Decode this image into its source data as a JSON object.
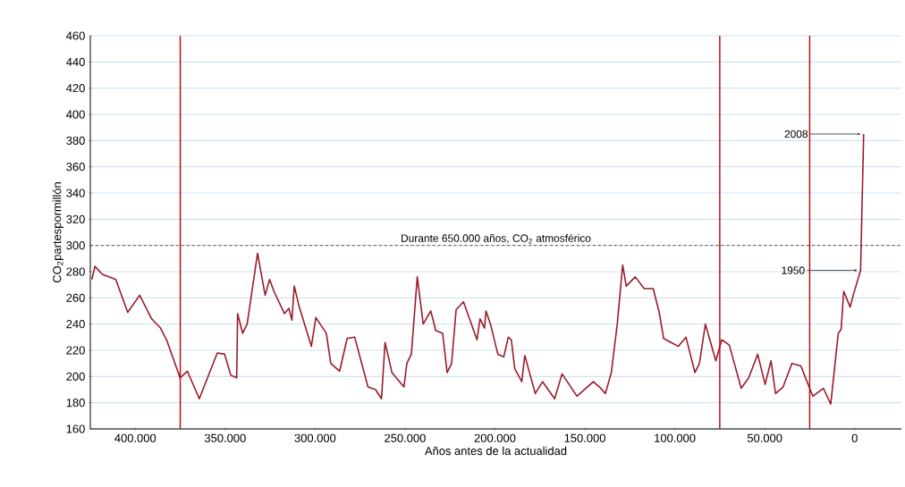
{
  "chart_data": {
    "type": "line",
    "xlabel": "Años antes de la actualidad",
    "ylabel": "CO$_{2}$partespormillón",
    "x": [
      424150,
      422440,
      418300,
      410850,
      404200,
      397550,
      390900,
      386000,
      382600,
      375100,
      371000,
      364400,
      354400,
      350300,
      346900,
      343600,
      343100,
      340300,
      337800,
      332000,
      327800,
      325300,
      322900,
      317100,
      314600,
      312900,
      311600,
      308800,
      302100,
      299600,
      293800,
      291300,
      286400,
      282200,
      278000,
      270600,
      266400,
      263100,
      261100,
      257300,
      250600,
      249000,
      246500,
      243200,
      239900,
      235700,
      232900,
      229100,
      226600,
      224100,
      221600,
      217500,
      210000,
      208300,
      205800,
      205000,
      202500,
      198400,
      195100,
      192600,
      190900,
      189000,
      185100,
      183400,
      177600,
      173500,
      166800,
      162700,
      154400,
      145300,
      141900,
      138600,
      135300,
      132000,
      129000,
      127000,
      122000,
      117000,
      112000,
      108700,
      106200,
      102100,
      98000,
      93800,
      88800,
      86300,
      83000,
      77200,
      73900,
      69700,
      63100,
      58900,
      53900,
      49800,
      46500,
      44000,
      39800,
      34900,
      29900,
      23300,
      17400,
      13300,
      9100,
      7500,
      6100,
      2500,
      800,
      -3300,
      -5000
    ],
    "series": [
      {
        "color": "#9b1b2a",
        "values": [
          274,
          284,
          278,
          274,
          249,
          262,
          244,
          237,
          228,
          199,
          204,
          183,
          218,
          217,
          201,
          199,
          248,
          233,
          240,
          294,
          262,
          274,
          265,
          248,
          252,
          243,
          269,
          253,
          223,
          245,
          233,
          210,
          204,
          229,
          230,
          192,
          190,
          183,
          226,
          203,
          192,
          210,
          217,
          276,
          240,
          250,
          235,
          233,
          203,
          210,
          251,
          257,
          228,
          244,
          237,
          250,
          240,
          217,
          215,
          230,
          228,
          206,
          196,
          216,
          187,
          196,
          183,
          202,
          185,
          196,
          192,
          187,
          203,
          240,
          285,
          269,
          276,
          267,
          267,
          249,
          229,
          226,
          223,
          230,
          203,
          210,
          240,
          212,
          228,
          224,
          191,
          199,
          217,
          194,
          212,
          187,
          192,
          210,
          208,
          185,
          191,
          179,
          233,
          236,
          265,
          253,
          262,
          281,
          385
        ]
      }
    ],
    "xlim": [
      425000,
      -26000
    ],
    "xticks": [
      {
        "value": 400000,
        "label": "400.000"
      },
      {
        "value": 350000,
        "label": "350.000"
      },
      {
        "value": 300000,
        "label": "300.000"
      },
      {
        "value": 250000,
        "label": "250.000"
      },
      {
        "value": 200000,
        "label": "200.000"
      },
      {
        "value": 150000,
        "label": "150.000"
      },
      {
        "value": 100000,
        "label": "100.000"
      },
      {
        "value": 50000,
        "label": "50.000"
      },
      {
        "value": 0,
        "label": "0"
      }
    ],
    "ylim": [
      160,
      460
    ],
    "yticks": [
      160,
      180,
      200,
      220,
      240,
      260,
      280,
      300,
      320,
      340,
      360,
      380,
      400,
      420,
      440,
      460
    ],
    "grid": "y",
    "line_style": "solid",
    "ref_lines": [
      {
        "axis": "y",
        "value": 300,
        "label": "Durante 650.000 años, CO$_{2}$ atmosférico",
        "color": "#333333",
        "line_style": "dashed"
      },
      {
        "axis": "x",
        "value": 375000,
        "color": "#c00000"
      },
      {
        "axis": "x",
        "value": 75000,
        "color": "#c00000"
      },
      {
        "axis": "x",
        "value": 25000,
        "color": "#c00000"
      }
    ],
    "annotations": [
      {
        "text": "2008",
        "x": -5000,
        "y": 385
      },
      {
        "text": "1950",
        "x": -3300,
        "y": 281
      }
    ]
  }
}
